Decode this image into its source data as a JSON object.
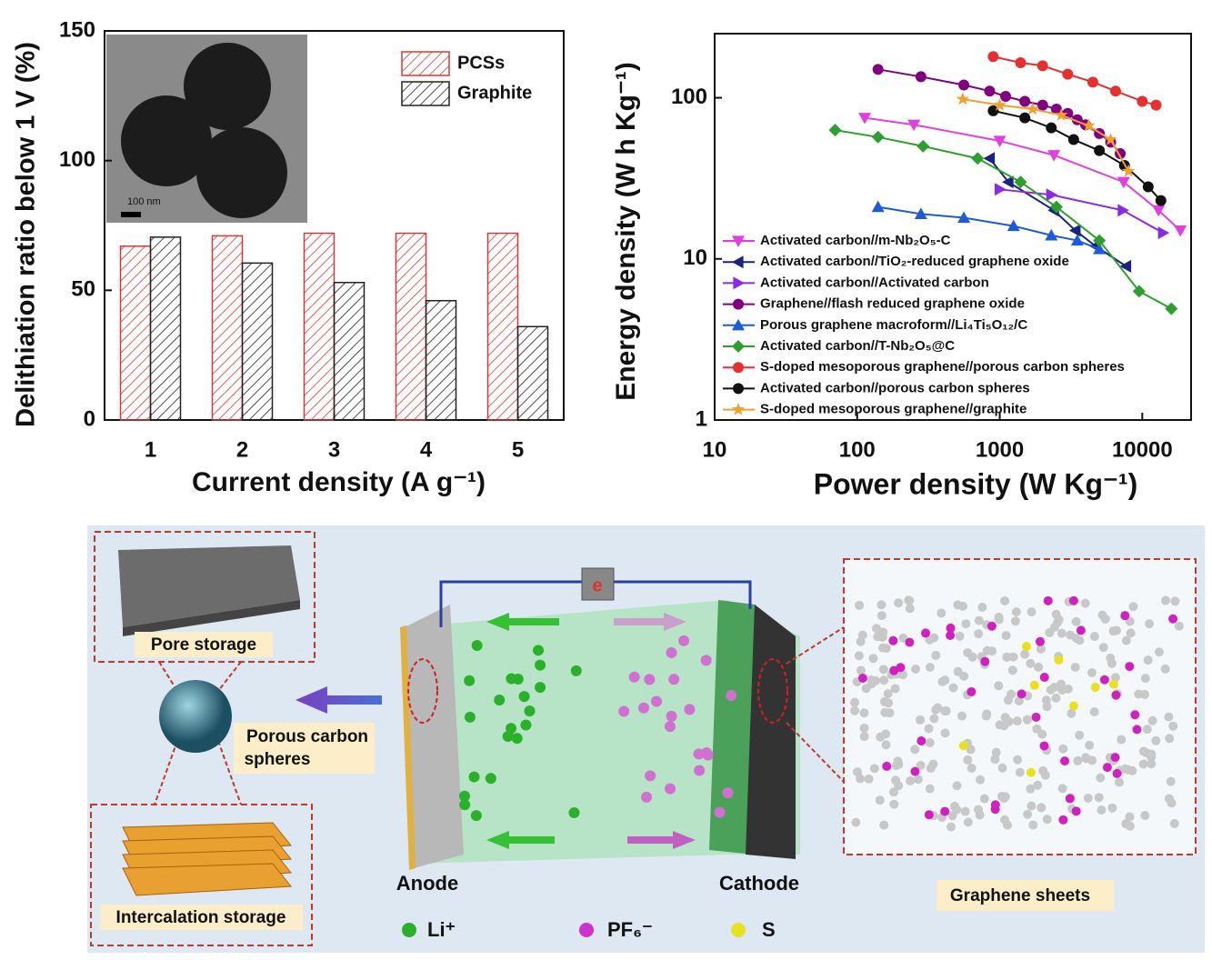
{
  "chart_data": [
    {
      "type": "bar",
      "y_label": "Delithiation ratio below 1 V (%)",
      "x_label": "Current density (A g⁻¹)",
      "inset_label": "100 nm",
      "categories": [
        "1",
        "2",
        "3",
        "4",
        "5"
      ],
      "series": [
        {
          "name": "PCSs",
          "color": "#d23a3a",
          "values": [
            67,
            71,
            72,
            72,
            72
          ]
        },
        {
          "name": "Graphite",
          "color": "#222222",
          "values": [
            70.5,
            60.5,
            53,
            46,
            36
          ]
        }
      ],
      "ylim": [
        0,
        150
      ],
      "yticks": [
        0,
        50,
        100,
        150
      ],
      "legend": "upper right"
    },
    {
      "type": "line",
      "y_label": "Energy density (W h Kg⁻¹)",
      "x_label": "Power density (W Kg⁻¹)",
      "log_x": true,
      "log_y": true,
      "xlim": [
        10,
        22000
      ],
      "ylim": [
        1,
        250
      ],
      "xticks": [
        10,
        100,
        1000,
        10000
      ],
      "yticks": [
        1,
        10,
        100
      ],
      "legend": "lower left",
      "series": [
        {
          "name": "Activated carbon//m-Nb₂O₅-C",
          "color": "#e040e0",
          "marker": "triangle-down",
          "x": [
            113,
            250,
            1000,
            2400,
            7400,
            13000,
            18500
          ],
          "values": [
            75,
            68,
            54,
            44,
            30,
            20,
            15
          ]
        },
        {
          "name": "Activated carbon//TiO₂-reduced graphene oxide",
          "color": "#1a237e",
          "marker": "triangle-left",
          "x": [
            850,
            1150,
            2400,
            3400,
            4700,
            7700
          ],
          "values": [
            42,
            30,
            20,
            15,
            12,
            9
          ]
        },
        {
          "name": "Activated carbon//Activated carbon",
          "color": "#8a2be2",
          "marker": "triangle-right",
          "x": [
            1000,
            2300,
            7300,
            14000
          ],
          "values": [
            27,
            25,
            20,
            14.5
          ]
        },
        {
          "name": "Graphene//flash reduced graphene oxide",
          "color": "#800080",
          "marker": "circle",
          "x": [
            140,
            280,
            560,
            850,
            1100,
            1500,
            2000,
            2500,
            3000,
            3500,
            4000,
            5000,
            6000,
            7000
          ],
          "values": [
            150,
            135,
            120,
            110,
            102,
            95,
            90,
            85,
            80,
            73,
            68,
            60,
            53,
            45
          ]
        },
        {
          "name": "Porous graphene macroform//Li₄Ti₅O₁₂/C",
          "color": "#1e5bd6",
          "marker": "triangle-up",
          "x": [
            140,
            280,
            560,
            1250,
            2300,
            3500,
            5000
          ],
          "values": [
            21,
            19,
            18,
            16,
            14,
            13,
            11.5
          ]
        },
        {
          "name": "Activated carbon//T-Nb₂O₅@C",
          "color": "#2e9e2e",
          "marker": "diamond",
          "x": [
            70,
            140,
            290,
            700,
            1400,
            2500,
            5000,
            9500,
            16000
          ],
          "values": [
            63,
            57,
            50,
            42,
            30,
            21,
            13,
            6.3,
            4.9
          ]
        },
        {
          "name": "S-doped mesoporous graphene//porous carbon spheres",
          "color": "#e53030",
          "marker": "circle",
          "x": [
            900,
            1400,
            2000,
            3000,
            4500,
            6500,
            10000,
            12500
          ],
          "values": [
            180,
            165,
            158,
            140,
            125,
            110,
            95,
            90
          ]
        },
        {
          "name": "Activated carbon//porous carbon spheres",
          "color": "#111111",
          "marker": "circle",
          "x": [
            900,
            1500,
            2300,
            3300,
            5000,
            7500,
            11000,
            13500
          ],
          "values": [
            83,
            75,
            65,
            55,
            47,
            38,
            28,
            23
          ]
        },
        {
          "name": "S-doped mesoporous graphene//graphite",
          "color": "#f0a030",
          "marker": "star",
          "x": [
            550,
            1000,
            1700,
            2700,
            4200,
            6000,
            8000
          ],
          "values": [
            98,
            90,
            85,
            78,
            67,
            55,
            35
          ]
        }
      ]
    }
  ],
  "diagram": {
    "pore_storage": "Pore storage",
    "porous_carbon_spheres": [
      "Porous carbon",
      "spheres"
    ],
    "intercalation_storage": "Intercalation storage",
    "electron": "e",
    "anode": "Anode",
    "cathode": "Cathode",
    "graphene_sheets": "Graphene sheets",
    "legend": [
      "Li⁺",
      "PF₆⁻",
      "S"
    ]
  }
}
